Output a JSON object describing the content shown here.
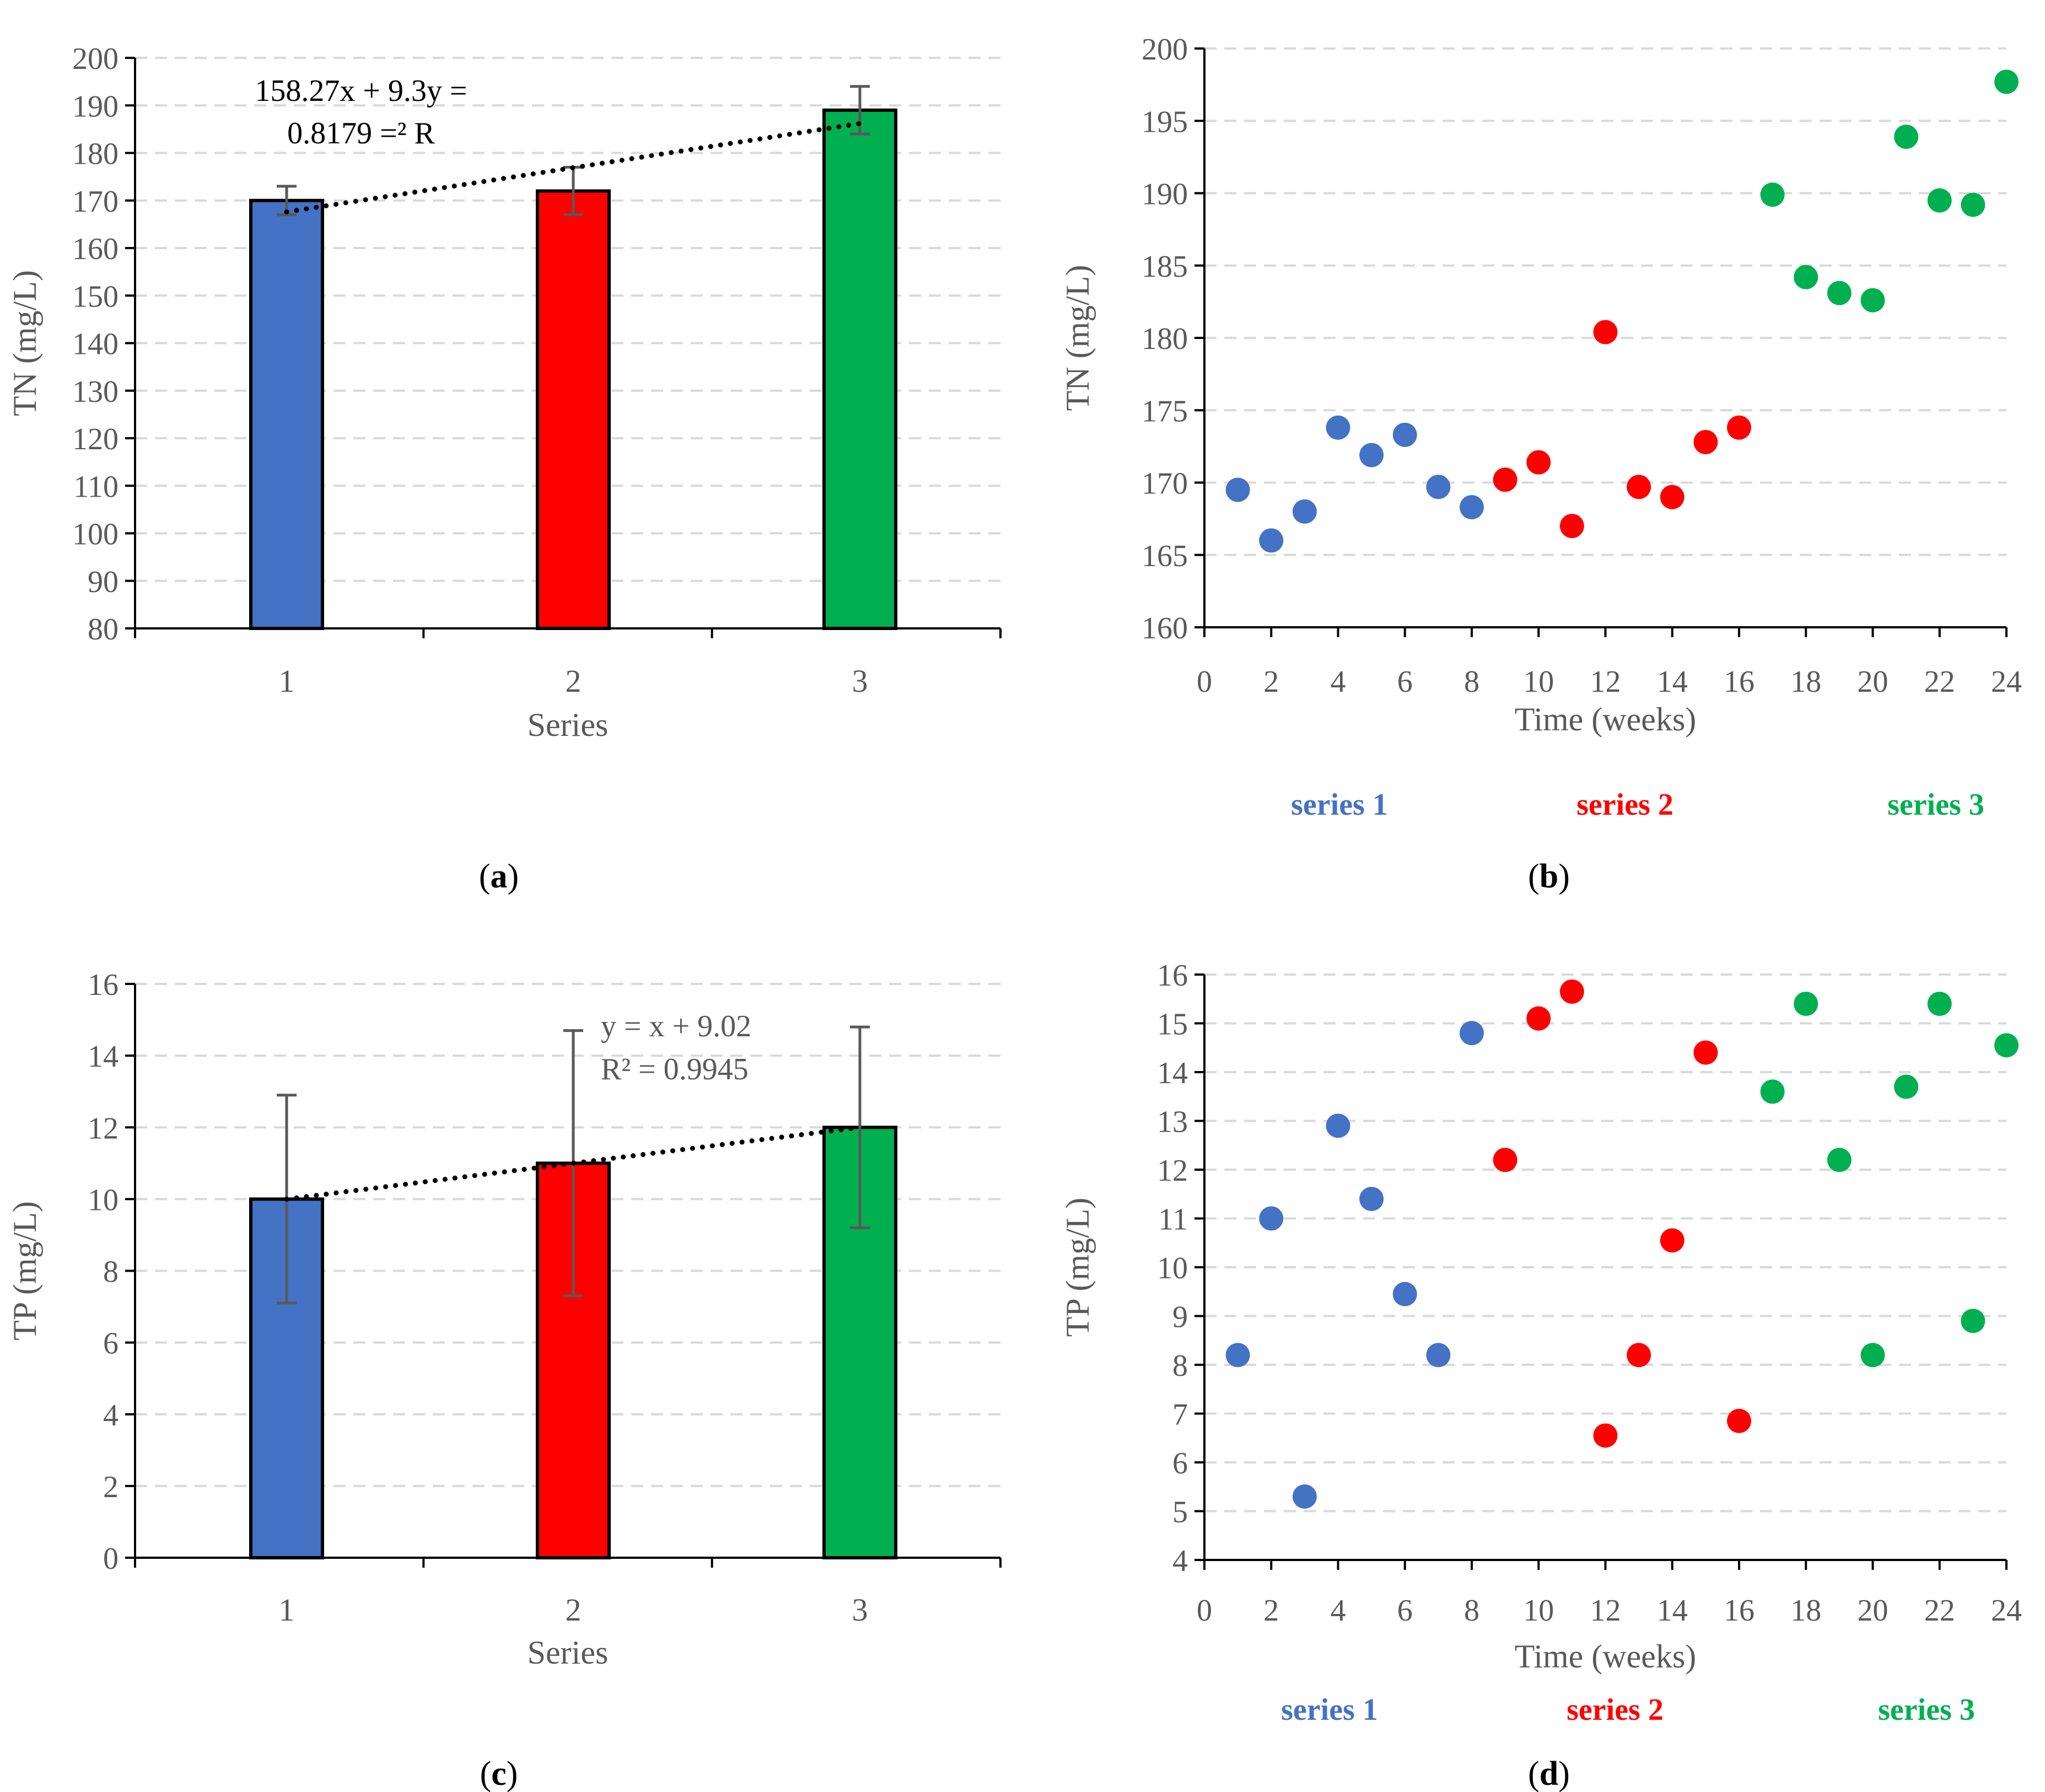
{
  "colors": {
    "series1": "#4472C4",
    "series2": "#FF0000",
    "series3": "#00B050",
    "grid": "#D9D9D9",
    "axis": "#000000",
    "error_bar": "#595959",
    "text": "#595959"
  },
  "chart_data": [
    {
      "panel_label": "(a)",
      "type": "bar",
      "categories": [
        "1",
        "2",
        "3"
      ],
      "values": [
        170,
        172,
        189
      ],
      "errors": [
        3,
        5,
        5
      ],
      "bar_colors": [
        "#4472C4",
        "#FF0000",
        "#00B050"
      ],
      "xlabel": "Series",
      "ylabel": "TN (mg/L)",
      "ylim": [
        80,
        200
      ],
      "yticks": [
        "80",
        "90",
        "100",
        "110",
        "120",
        "130",
        "140",
        "150",
        "160",
        "170",
        "180",
        "190",
        "200"
      ],
      "trendline": {
        "style": "dotted",
        "start": [
          1,
          167.6
        ],
        "end": [
          3,
          186.2
        ]
      },
      "annotation": [
        "158.27x + 9.3y =",
        "0.8179 =² R"
      ]
    },
    {
      "panel_label": "(b)",
      "type": "scatter",
      "xlabel": "Time (weeks)",
      "ylabel": "TN (mg/L)",
      "xlim": [
        0,
        24
      ],
      "ylim": [
        160,
        200
      ],
      "xticks": [
        "0",
        "2",
        "4",
        "6",
        "8",
        "10",
        "12",
        "14",
        "16",
        "18",
        "20",
        "22",
        "24"
      ],
      "yticks": [
        "160",
        "165",
        "170",
        "175",
        "180",
        "185",
        "190",
        "195",
        "200"
      ],
      "series": [
        {
          "name": "series 1",
          "color": "#4472C4",
          "x": [
            1,
            2,
            3,
            4,
            5,
            6,
            7,
            8
          ],
          "y": [
            169.5,
            166.0,
            168.0,
            173.8,
            171.9,
            173.3,
            169.7,
            168.3
          ]
        },
        {
          "name": "series 2",
          "color": "#FF0000",
          "x": [
            9,
            10,
            11,
            12,
            13,
            14,
            15,
            16
          ],
          "y": [
            170.2,
            171.4,
            167.0,
            180.4,
            169.7,
            169.0,
            172.8,
            173.8
          ]
        },
        {
          "name": "series 3",
          "color": "#00B050",
          "x": [
            17,
            18,
            19,
            20,
            21,
            22,
            23,
            24
          ],
          "y": [
            189.9,
            184.2,
            183.1,
            182.6,
            193.9,
            189.5,
            189.2,
            197.7
          ]
        }
      ],
      "legend": [
        "series 1",
        "series 2",
        "series 3"
      ]
    },
    {
      "panel_label": "(c)",
      "type": "bar",
      "categories": [
        "1",
        "2",
        "3"
      ],
      "values": [
        10,
        11,
        12
      ],
      "errors": [
        2.9,
        3.7,
        2.8
      ],
      "bar_colors": [
        "#4472C4",
        "#FF0000",
        "#00B050"
      ],
      "xlabel": "Series",
      "ylabel": "TP (mg/L)",
      "ylim": [
        0,
        16
      ],
      "yticks": [
        "0",
        "2",
        "4",
        "6",
        "8",
        "10",
        "12",
        "14",
        "16"
      ],
      "trendline": {
        "style": "dotted",
        "start": [
          1,
          10
        ],
        "end": [
          3,
          12
        ]
      },
      "annotation": [
        "y = x + 9.02",
        "R² = 0.9945"
      ]
    },
    {
      "panel_label": "(d)",
      "type": "scatter",
      "xlabel": "Time (weeks)",
      "ylabel": "TP (mg/L)",
      "xlim": [
        0,
        24
      ],
      "ylim": [
        4,
        16
      ],
      "xticks": [
        "0",
        "2",
        "4",
        "6",
        "8",
        "10",
        "12",
        "14",
        "16",
        "18",
        "20",
        "22",
        "24"
      ],
      "yticks": [
        "4",
        "5",
        "6",
        "7",
        "8",
        "9",
        "10",
        "11",
        "12",
        "13",
        "14",
        "15",
        "16"
      ],
      "series": [
        {
          "name": "series 1",
          "color": "#4472C4",
          "x": [
            1,
            2,
            3,
            4,
            5,
            6,
            7,
            8
          ],
          "y": [
            8.2,
            11.0,
            5.3,
            12.9,
            11.4,
            9.45,
            8.2,
            14.8
          ]
        },
        {
          "name": "series 2",
          "color": "#FF0000",
          "x": [
            9,
            10,
            11,
            12,
            13,
            14,
            15,
            16
          ],
          "y": [
            12.2,
            15.1,
            15.65,
            6.55,
            8.2,
            10.55,
            14.4,
            6.85
          ]
        },
        {
          "name": "series 3",
          "color": "#00B050",
          "x": [
            17,
            18,
            19,
            20,
            21,
            22,
            23,
            24
          ],
          "y": [
            13.6,
            15.4,
            12.2,
            8.2,
            13.7,
            15.4,
            8.9,
            14.55
          ]
        }
      ],
      "legend": [
        "series 1",
        "series 2",
        "series 3"
      ]
    }
  ]
}
